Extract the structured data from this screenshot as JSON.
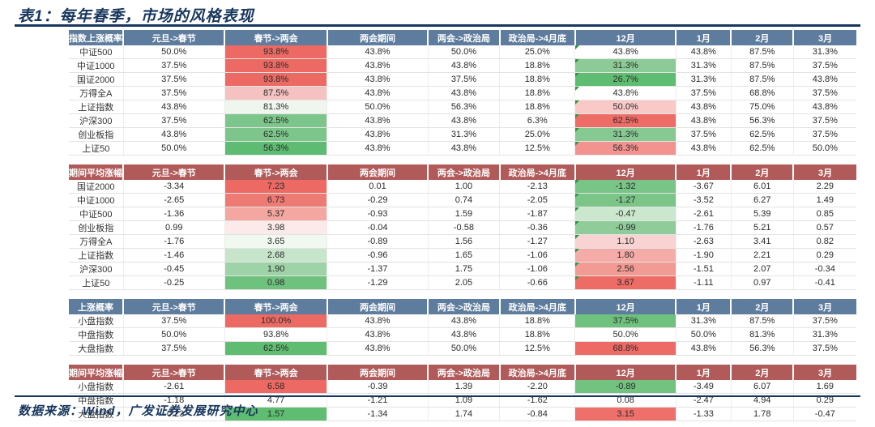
{
  "title": "表1：每年春季，市场的风格表现",
  "source": "数据来源：Wind，广发证券发展研究中心",
  "colors": {
    "header_blue": "#5E7C9D",
    "header_red": "#B15A5A",
    "title_navy": "#17365D",
    "strong_red": "#EC6A63",
    "strong_green": "#5FBD72",
    "corner_flag_green": "#2E9640"
  },
  "columns": [
    "元旦->春节",
    "春节->两会",
    "两会期间",
    "两会->政治局",
    "政治局->4月底",
    "12月",
    "1月",
    "2月",
    "3月"
  ],
  "chart_data": [
    {
      "type": "table",
      "name": "指数上涨概率",
      "header_style": "blue",
      "corner_col": 5,
      "rows": [
        {
          "name": "中证500",
          "values": [
            "50.0%",
            "93.8%",
            "43.8%",
            "50.0%",
            "25.0%",
            "43.8%",
            "43.8%",
            "87.5%",
            "31.3%"
          ],
          "fills": {
            "1": "#EC6A63"
          }
        },
        {
          "name": "中证1000",
          "values": [
            "37.5%",
            "93.8%",
            "43.8%",
            "43.8%",
            "18.8%",
            "31.3%",
            "31.3%",
            "87.5%",
            "37.5%"
          ],
          "fills": {
            "1": "#EC6A63",
            "5": "#8CCA97"
          }
        },
        {
          "name": "国证2000",
          "values": [
            "37.5%",
            "93.8%",
            "43.8%",
            "37.5%",
            "18.8%",
            "26.7%",
            "31.3%",
            "87.5%",
            "43.8%"
          ],
          "fills": {
            "1": "#EC6A63",
            "5": "#5FBD72"
          }
        },
        {
          "name": "万得全A",
          "values": [
            "37.5%",
            "87.5%",
            "43.8%",
            "43.8%",
            "18.8%",
            "43.8%",
            "37.5%",
            "68.8%",
            "37.5%"
          ],
          "fills": {
            "1": "#F6C2C1"
          }
        },
        {
          "name": "上证指数",
          "values": [
            "43.8%",
            "81.3%",
            "50.0%",
            "56.3%",
            "18.8%",
            "50.0%",
            "43.8%",
            "75.0%",
            "43.8%"
          ],
          "fills": {
            "1": "#EFF6EE",
            "5": "#F9C9C8"
          }
        },
        {
          "name": "沪深300",
          "values": [
            "37.5%",
            "62.5%",
            "43.8%",
            "43.8%",
            "6.3%",
            "62.5%",
            "43.8%",
            "56.3%",
            "37.5%"
          ],
          "fills": {
            "1": "#7CC68B",
            "5": "#ED6C66"
          }
        },
        {
          "name": "创业板指",
          "values": [
            "43.8%",
            "62.5%",
            "43.8%",
            "31.3%",
            "25.0%",
            "31.3%",
            "37.5%",
            "62.5%",
            "37.5%"
          ],
          "fills": {
            "1": "#7CC68B",
            "5": "#86C993"
          }
        },
        {
          "name": "上证50",
          "values": [
            "50.0%",
            "56.3%",
            "43.8%",
            "43.8%",
            "12.5%",
            "56.3%",
            "43.8%",
            "62.5%",
            "50.0%"
          ],
          "fills": {
            "1": "#5EBC72",
            "5": "#F3938F"
          }
        }
      ]
    },
    {
      "type": "table",
      "name": "期间平均涨幅",
      "header_style": "red",
      "corner_col": 5,
      "rows": [
        {
          "name": "国证2000",
          "values": [
            "-3.34",
            "7.23",
            "0.01",
            "1.00",
            "-2.13",
            "-1.32",
            "-3.67",
            "6.01",
            "2.29"
          ],
          "fills": {
            "1": "#EC6A63",
            "5": "#79C487"
          }
        },
        {
          "name": "中证1000",
          "values": [
            "-2.65",
            "6.73",
            "-0.29",
            "0.74",
            "-2.05",
            "-1.27",
            "-3.52",
            "6.27",
            "1.49"
          ],
          "fills": {
            "1": "#EE7B73",
            "5": "#7CC589"
          }
        },
        {
          "name": "中证500",
          "values": [
            "-1.36",
            "5.37",
            "-0.93",
            "1.59",
            "-1.87",
            "-0.47",
            "-2.61",
            "5.39",
            "0.85"
          ],
          "fills": {
            "1": "#F4A6A1",
            "5": "#CBE8CF"
          }
        },
        {
          "name": "创业板指",
          "values": [
            "0.99",
            "3.98",
            "-0.04",
            "-0.58",
            "-0.36",
            "-0.99",
            "-1.76",
            "5.21",
            "0.57"
          ],
          "fills": {
            "1": "#FCEAEA",
            "5": "#8FCC9A"
          }
        },
        {
          "name": "万得全A",
          "values": [
            "-1.76",
            "3.65",
            "-0.89",
            "1.56",
            "-1.27",
            "1.10",
            "-2.63",
            "3.41",
            "0.82"
          ],
          "fills": {
            "1": "#F1F8F0",
            "5": "#F9D3D1"
          }
        },
        {
          "name": "上证指数",
          "values": [
            "-1.46",
            "2.68",
            "-0.96",
            "1.65",
            "-1.06",
            "1.80",
            "-1.90",
            "2.21",
            "0.29"
          ],
          "fills": {
            "1": "#C7E5CB",
            "5": "#F5ACA8"
          }
        },
        {
          "name": "沪深300",
          "values": [
            "-0.45",
            "1.90",
            "-1.37",
            "1.75",
            "-1.06",
            "2.56",
            "-1.51",
            "2.07",
            "-0.34"
          ],
          "fills": {
            "1": "#9DD3A6",
            "5": "#F29A94"
          }
        },
        {
          "name": "上证50",
          "values": [
            "-0.25",
            "0.98",
            "-1.29",
            "2.05",
            "-0.66",
            "3.67",
            "-1.11",
            "0.97",
            "-0.41"
          ],
          "fills": {
            "1": "#6FC27E",
            "5": "#ED6C66"
          }
        }
      ]
    },
    {
      "type": "table",
      "name": "上涨概率",
      "header_style": "blue",
      "corner_col": null,
      "rows": [
        {
          "name": "小盘指数",
          "values": [
            "37.5%",
            "100.0%",
            "43.8%",
            "43.8%",
            "18.8%",
            "37.5%",
            "31.3%",
            "87.5%",
            "37.5%"
          ],
          "fills": {
            "1": "#EC6A63",
            "5": "#6FC27E"
          }
        },
        {
          "name": "中盘指数",
          "values": [
            "50.0%",
            "93.8%",
            "43.8%",
            "43.8%",
            "18.8%",
            "50.0%",
            "50.0%",
            "81.3%",
            "31.3%"
          ],
          "fills": {}
        },
        {
          "name": "大盘指数",
          "values": [
            "37.5%",
            "62.5%",
            "43.8%",
            "50.0%",
            "12.5%",
            "68.8%",
            "43.8%",
            "56.3%",
            "37.5%"
          ],
          "fills": {
            "1": "#5FBD72",
            "5": "#EE6B65"
          }
        }
      ]
    },
    {
      "type": "table",
      "name": "期间平均涨幅",
      "header_style": "red",
      "corner_col": null,
      "rows": [
        {
          "name": "小盘指数",
          "values": [
            "-2.61",
            "6.58",
            "-0.39",
            "1.39",
            "-2.20",
            "-0.89",
            "-3.49",
            "6.07",
            "1.69"
          ],
          "fills": {
            "1": "#EC6A63",
            "5": "#72C380"
          }
        },
        {
          "name": "中盘指数",
          "values": [
            "-1.18",
            "4.77",
            "-1.21",
            "1.09",
            "-1.62",
            "0.08",
            "-2.47",
            "4.94",
            "0.29"
          ],
          "fills": {}
        },
        {
          "name": "大盘指数",
          "values": [
            "-0.23",
            "1.57",
            "-1.34",
            "1.74",
            "-0.84",
            "3.15",
            "-1.33",
            "1.78",
            "-0.47"
          ],
          "fills": {
            "1": "#5FBD72",
            "5": "#EF706A"
          }
        }
      ]
    }
  ]
}
